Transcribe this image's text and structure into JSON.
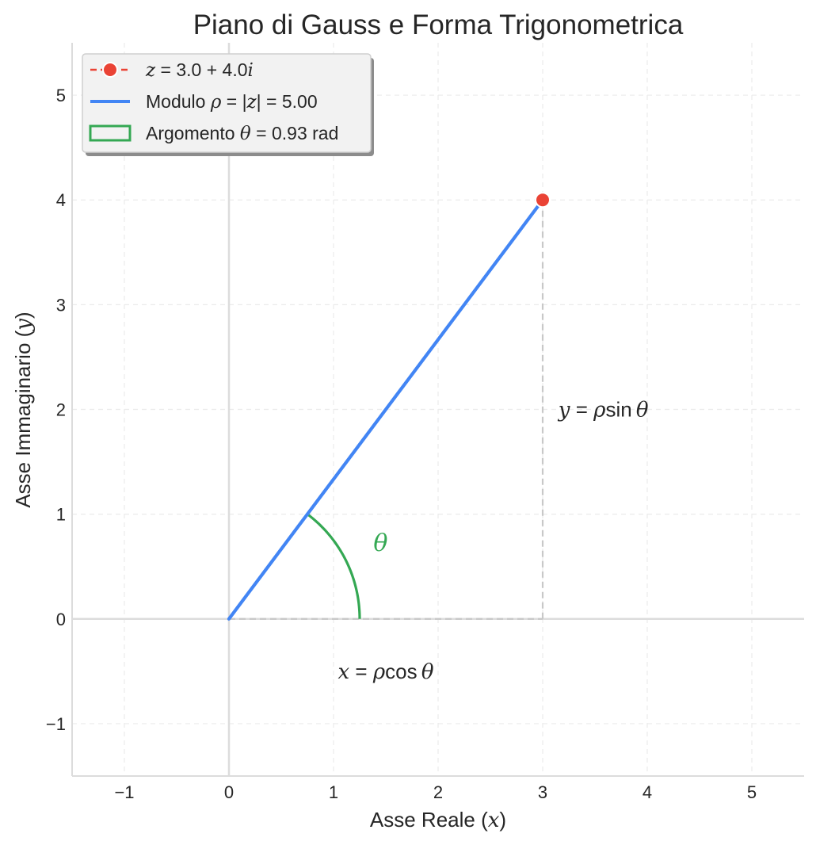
{
  "chart_data": {
    "type": "line",
    "title": "Piano di Gauss e Forma Trigonometrica",
    "xlabel": {
      "pre": "Asse Reale (",
      "var": "x",
      "post": ")"
    },
    "ylabel": {
      "pre": "Asse Immaginario (",
      "var": "y",
      "post": ")"
    },
    "xlim": [
      -1.5,
      5.5
    ],
    "ylim": [
      -1.5,
      5.5
    ],
    "xticks": [
      -1,
      0,
      1,
      2,
      3,
      4,
      5
    ],
    "yticks": [
      -1,
      0,
      1,
      2,
      3,
      4,
      5
    ],
    "xtick_labels": [
      "−1",
      "0",
      "1",
      "2",
      "3",
      "4",
      "5"
    ],
    "ytick_labels": [
      "−1",
      "0",
      "1",
      "2",
      "3",
      "4",
      "5"
    ],
    "grid": true,
    "legend_position": "top-left",
    "point": {
      "x": 3.0,
      "y": 4.0
    },
    "modulus": 5.0,
    "argument_rad": 0.93,
    "arc_radius": 1.25,
    "series": [
      {
        "name": "z = 3.0 + 4.0i",
        "kind": "point",
        "x": [
          3.0
        ],
        "y": [
          4.0
        ],
        "color": "#ea4335"
      },
      {
        "name": "Modulo ρ = |z| = 5.00",
        "kind": "line",
        "x": [
          0,
          3.0
        ],
        "y": [
          0,
          4.0
        ],
        "color": "#4285f4"
      },
      {
        "name": "Argomento θ = 0.93 rad",
        "kind": "arc",
        "color": "#34a853"
      }
    ],
    "legend": [
      {
        "parts": [
          [
            "z",
            "m"
          ],
          [
            " = 3.0 + 4.0",
            "mn"
          ],
          [
            "i",
            "m"
          ]
        ],
        "marker": "point",
        "color": "#ea4335"
      },
      {
        "parts": [
          [
            "Modulo ",
            "t"
          ],
          [
            "ρ",
            "m"
          ],
          [
            " = |",
            "mn"
          ],
          [
            "z",
            "m"
          ],
          [
            "| = 5.00",
            "mn"
          ]
        ],
        "marker": "line",
        "color": "#4285f4"
      },
      {
        "parts": [
          [
            "Argomento ",
            "t"
          ],
          [
            "θ",
            "m"
          ],
          [
            " = 0.93 rad",
            "mn"
          ]
        ],
        "marker": "rect",
        "color": "#34a853"
      }
    ],
    "annotations": [
      {
        "id": "theta",
        "parts": [
          [
            "θ",
            "m"
          ]
        ],
        "x": 1.45,
        "y": 0.73,
        "color": "#34a853",
        "size": 30
      },
      {
        "id": "x-formula",
        "parts": [
          [
            "x",
            "m"
          ],
          [
            " = ",
            "mn"
          ],
          [
            "ρ",
            "m"
          ],
          [
            "cos",
            "mn"
          ],
          [
            " ",
            "mn"
          ],
          [
            "θ",
            "m"
          ]
        ],
        "x": 1.5,
        "y": -0.5,
        "color": "#262626",
        "size": 26
      },
      {
        "id": "y-formula",
        "parts": [
          [
            "y",
            "m"
          ],
          [
            " = ",
            "mn"
          ],
          [
            "ρ",
            "m"
          ],
          [
            "sin",
            "mn"
          ],
          [
            " ",
            "mn"
          ],
          [
            "θ",
            "m"
          ]
        ],
        "x": 3.15,
        "y": 2.0,
        "color": "#262626",
        "size": 26,
        "anchor": "start"
      }
    ],
    "colors": {
      "point": "#ea4335",
      "modulus": "#4285f4",
      "argument": "#34a853",
      "projection": "#c8c8c8",
      "axes_lines": "#dcdcdc",
      "grid": "#ebebeb",
      "legend_bg": "#f2f2f2"
    }
  }
}
